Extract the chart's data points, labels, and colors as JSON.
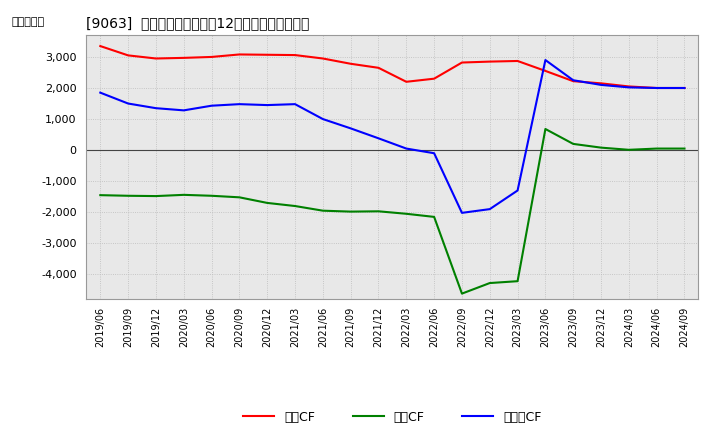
{
  "title": "[9063]  キャッシュフローの12か月移動合計の推移",
  "ylabel": "（百万円）",
  "ylim": [
    -4800,
    3700
  ],
  "yticks": [
    -4000,
    -3000,
    -2000,
    -1000,
    0,
    1000,
    2000,
    3000
  ],
  "legend_labels": [
    "営業CF",
    "投資CF",
    "フリーCF"
  ],
  "colors": {
    "eigyo": "#ff0000",
    "toshi": "#008000",
    "free": "#0000ff"
  },
  "dates": [
    "2019/06",
    "2019/09",
    "2019/12",
    "2020/03",
    "2020/06",
    "2020/09",
    "2020/12",
    "2021/03",
    "2021/06",
    "2021/09",
    "2021/12",
    "2022/03",
    "2022/06",
    "2022/09",
    "2022/12",
    "2023/03",
    "2023/06",
    "2023/09",
    "2023/12",
    "2024/03",
    "2024/06",
    "2024/09"
  ],
  "eigyo_cf": [
    3350,
    3050,
    2950,
    2970,
    3000,
    3080,
    3070,
    3060,
    2950,
    2780,
    2650,
    2200,
    2300,
    2820,
    2850,
    2870,
    2550,
    2220,
    2150,
    2050,
    2000,
    2000
  ],
  "toshi_cf": [
    -1450,
    -1470,
    -1480,
    -1440,
    -1470,
    -1520,
    -1700,
    -1800,
    -1950,
    -1980,
    -1970,
    -2050,
    -2150,
    -4620,
    -4280,
    -4220,
    680,
    200,
    80,
    10,
    50,
    50
  ],
  "free_cf": [
    1850,
    1500,
    1350,
    1280,
    1430,
    1480,
    1450,
    1480,
    1000,
    700,
    380,
    50,
    -100,
    -2020,
    -1900,
    -1300,
    2900,
    2250,
    2100,
    2020,
    2000,
    2000
  ],
  "bg_color": "#e8e8e8",
  "grid_color": "#ffffff",
  "spine_color": "#999999"
}
